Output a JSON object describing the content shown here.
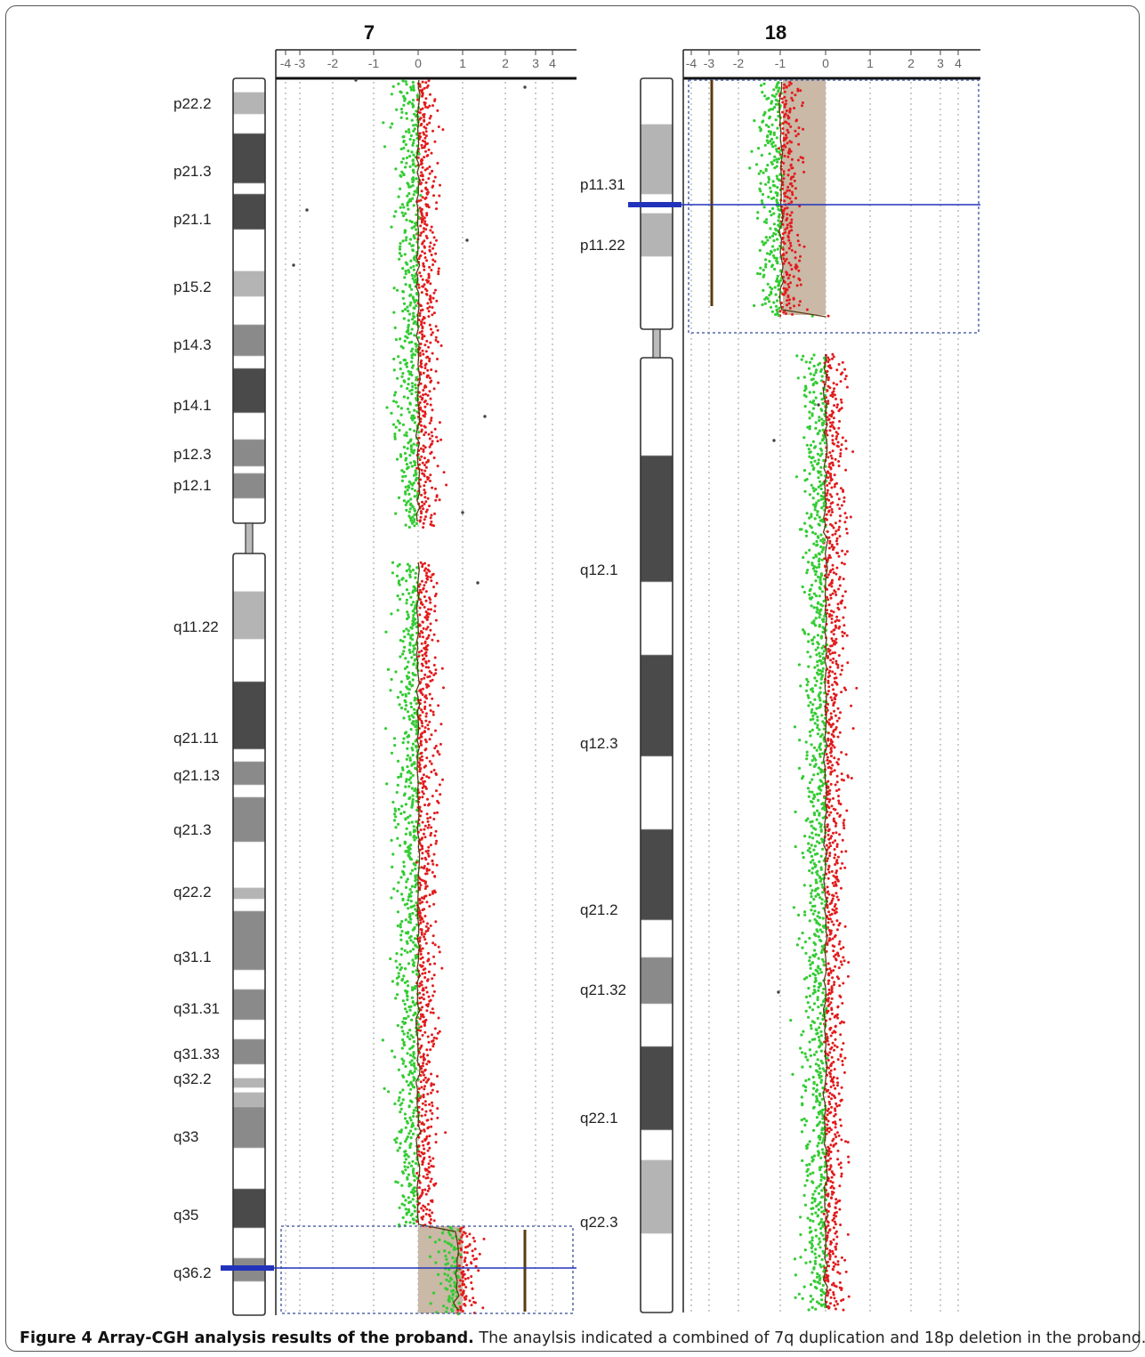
{
  "figure": {
    "caption_bold": "Figure 4 Array-CGH analysis results of the proband.",
    "caption_text": " The anaylsis indicated a combined of 7q duplication and 18p deletion in the proband."
  },
  "colors": {
    "gain_points": "#e31a1c",
    "loss_points": "#33cc33",
    "moving_average": "#5a3a12",
    "aberration_highlight": "#c9b9a6",
    "breakpoint_marker": "#2233bb",
    "box_border": "#5566aa"
  },
  "chart_data": [
    {
      "type": "scatter",
      "title": "7",
      "x_ticks": [
        "-4",
        "-3",
        "-2",
        "-1",
        "0",
        "1",
        "2",
        "3",
        "4"
      ],
      "x_tick_values": [
        -4,
        -3,
        -2,
        -1,
        0,
        1,
        2,
        3,
        4
      ],
      "xlim": [
        -4.5,
        4.5
      ],
      "ylabel_bands": [
        "p22.2",
        "p21.3",
        "p21.1",
        "p15.2",
        "p14.3",
        "p14.1",
        "p12.3",
        "p12.1",
        "q11.22",
        "q21.11",
        "q21.13",
        "q21.3",
        "q22.2",
        "q31.1",
        "q31.31",
        "q31.33",
        "q32.2",
        "q33",
        "q35",
        "q36.2"
      ],
      "series": [
        {
          "name": "",
          "description_color": "red",
          "values_center": 0.3
        },
        {
          "name": "",
          "description_color": "green",
          "values_center": -0.3
        }
      ],
      "aberration": {
        "region": "q36.2",
        "log2_ratio": 0.45,
        "type": "gain"
      },
      "grid": true
    },
    {
      "type": "scatter",
      "title": "18",
      "x_ticks": [
        "-4",
        "-3",
        "-2",
        "-1",
        "0",
        "1",
        "2",
        "3",
        "4"
      ],
      "x_tick_values": [
        -4,
        -3,
        -2,
        -1,
        0,
        1,
        2,
        3,
        4
      ],
      "xlim": [
        -4.5,
        4.5
      ],
      "ylabel_bands": [
        "p11.31",
        "p11.22",
        "q12.1",
        "q12.3",
        "q21.2",
        "q21.32",
        "q22.1",
        "q22.3"
      ],
      "series": [
        {
          "name": "",
          "description_color": "red",
          "values_center": 0.3
        },
        {
          "name": "",
          "description_color": "green",
          "values_center": -0.3
        }
      ],
      "aberration": {
        "region": "p11.31-p11.22",
        "log2_ratio": -1.0,
        "type": "loss"
      },
      "grid": true
    }
  ]
}
